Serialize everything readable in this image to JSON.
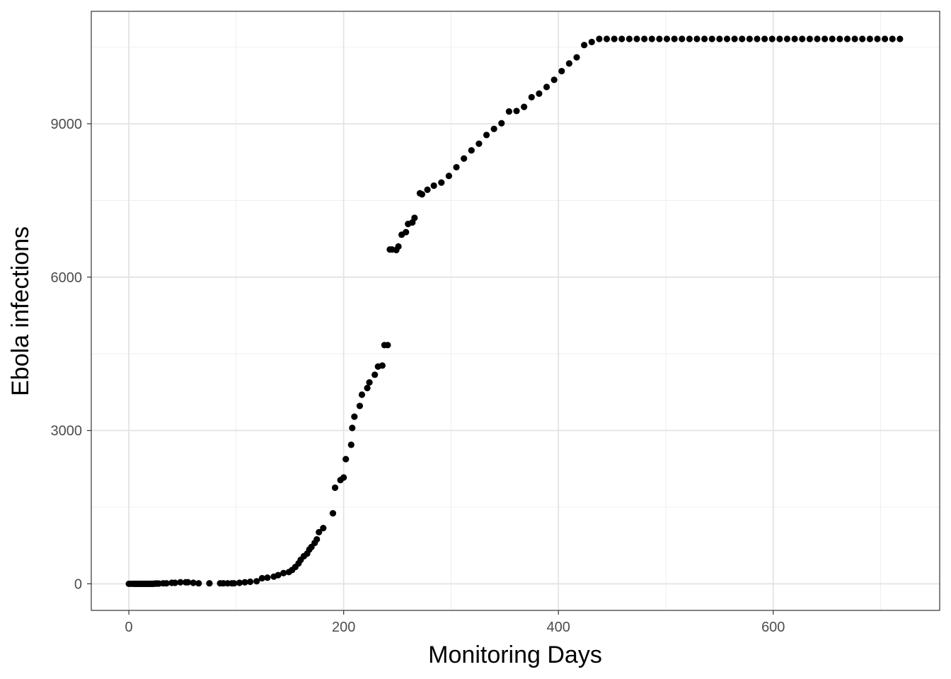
{
  "chart_data": {
    "type": "scatter",
    "title": "",
    "xlabel": "Monitoring Days",
    "ylabel": "Ebola infections",
    "xlim": [
      -35,
      755
    ],
    "ylim": [
      -520,
      11200
    ],
    "x_ticks": [
      0,
      200,
      400,
      600
    ],
    "y_ticks": [
      0,
      3000,
      6000,
      9000
    ],
    "x_tick_labels": [
      "0",
      "200",
      "400",
      "600"
    ],
    "y_tick_labels": [
      "0",
      "3000",
      "6000",
      "9000"
    ],
    "grid": true,
    "point_color": "#000000",
    "series": [
      {
        "x": [
          0,
          2,
          4,
          5,
          6,
          7,
          8,
          9,
          10,
          11,
          12,
          13,
          14,
          15,
          16,
          17,
          18,
          19,
          20,
          21,
          22,
          23,
          24,
          25,
          26,
          27,
          28,
          32,
          35,
          40,
          43,
          48,
          53,
          55,
          60,
          65,
          75,
          85,
          88,
          92,
          96,
          98,
          103,
          108,
          113,
          119,
          124,
          129,
          135,
          139,
          144,
          149,
          152,
          155,
          158,
          160,
          163,
          166,
          168,
          170,
          173,
          175,
          177,
          181,
          190,
          192,
          197,
          200,
          202,
          207,
          208,
          210,
          215,
          217,
          222,
          224,
          229,
          232,
          236,
          238,
          241,
          243,
          245,
          249,
          251,
          254,
          258,
          260,
          264,
          266,
          271,
          273,
          278,
          284,
          291,
          298,
          305,
          312,
          319,
          326,
          333,
          340,
          347,
          354,
          361,
          368,
          375,
          382,
          389,
          396,
          403,
          410,
          417,
          424,
          431,
          438,
          445,
          452,
          459,
          466,
          473,
          480,
          487,
          494,
          501,
          508,
          515,
          522,
          529,
          536,
          543,
          550,
          557,
          564,
          571,
          578,
          585,
          592,
          599,
          606,
          613,
          620,
          627,
          634,
          641,
          648,
          655,
          662,
          669,
          676,
          683,
          690,
          697,
          704,
          711,
          718
        ],
        "y": [
          0,
          0,
          0,
          0,
          0,
          0,
          0,
          0,
          0,
          0,
          0,
          0,
          0,
          0,
          0,
          0,
          0,
          0,
          0,
          0,
          0,
          0,
          5,
          5,
          5,
          5,
          5,
          10,
          10,
          20,
          20,
          30,
          30,
          30,
          20,
          10,
          10,
          10,
          10,
          10,
          10,
          10,
          20,
          30,
          40,
          50,
          110,
          120,
          140,
          170,
          210,
          230,
          270,
          330,
          400,
          470,
          540,
          590,
          670,
          720,
          800,
          870,
          1010,
          1090,
          1380,
          1880,
          2030,
          2080,
          2440,
          2720,
          3050,
          3270,
          3480,
          3700,
          3830,
          3940,
          4090,
          4250,
          4270,
          4670,
          4670,
          6540,
          6540,
          6530,
          6600,
          6830,
          6880,
          7040,
          7070,
          7160,
          7640,
          7620,
          7710,
          7790,
          7850,
          7980,
          8150,
          8320,
          8480,
          8610,
          8780,
          8900,
          9010,
          9240,
          9250,
          9330,
          9520,
          9590,
          9720,
          9860,
          10030,
          10180,
          10300,
          10540,
          10600,
          10660,
          10660,
          10660,
          10660,
          10660,
          10660,
          10660,
          10660,
          10660,
          10660,
          10660,
          10660,
          10660,
          10660,
          10660,
          10660,
          10660,
          10660,
          10660,
          10660,
          10660,
          10660,
          10660,
          10660,
          10660,
          10660,
          10660,
          10660,
          10660,
          10660,
          10660,
          10660,
          10660,
          10660,
          10660,
          10660,
          10660,
          10660,
          10660,
          10660,
          10660
        ]
      }
    ]
  }
}
